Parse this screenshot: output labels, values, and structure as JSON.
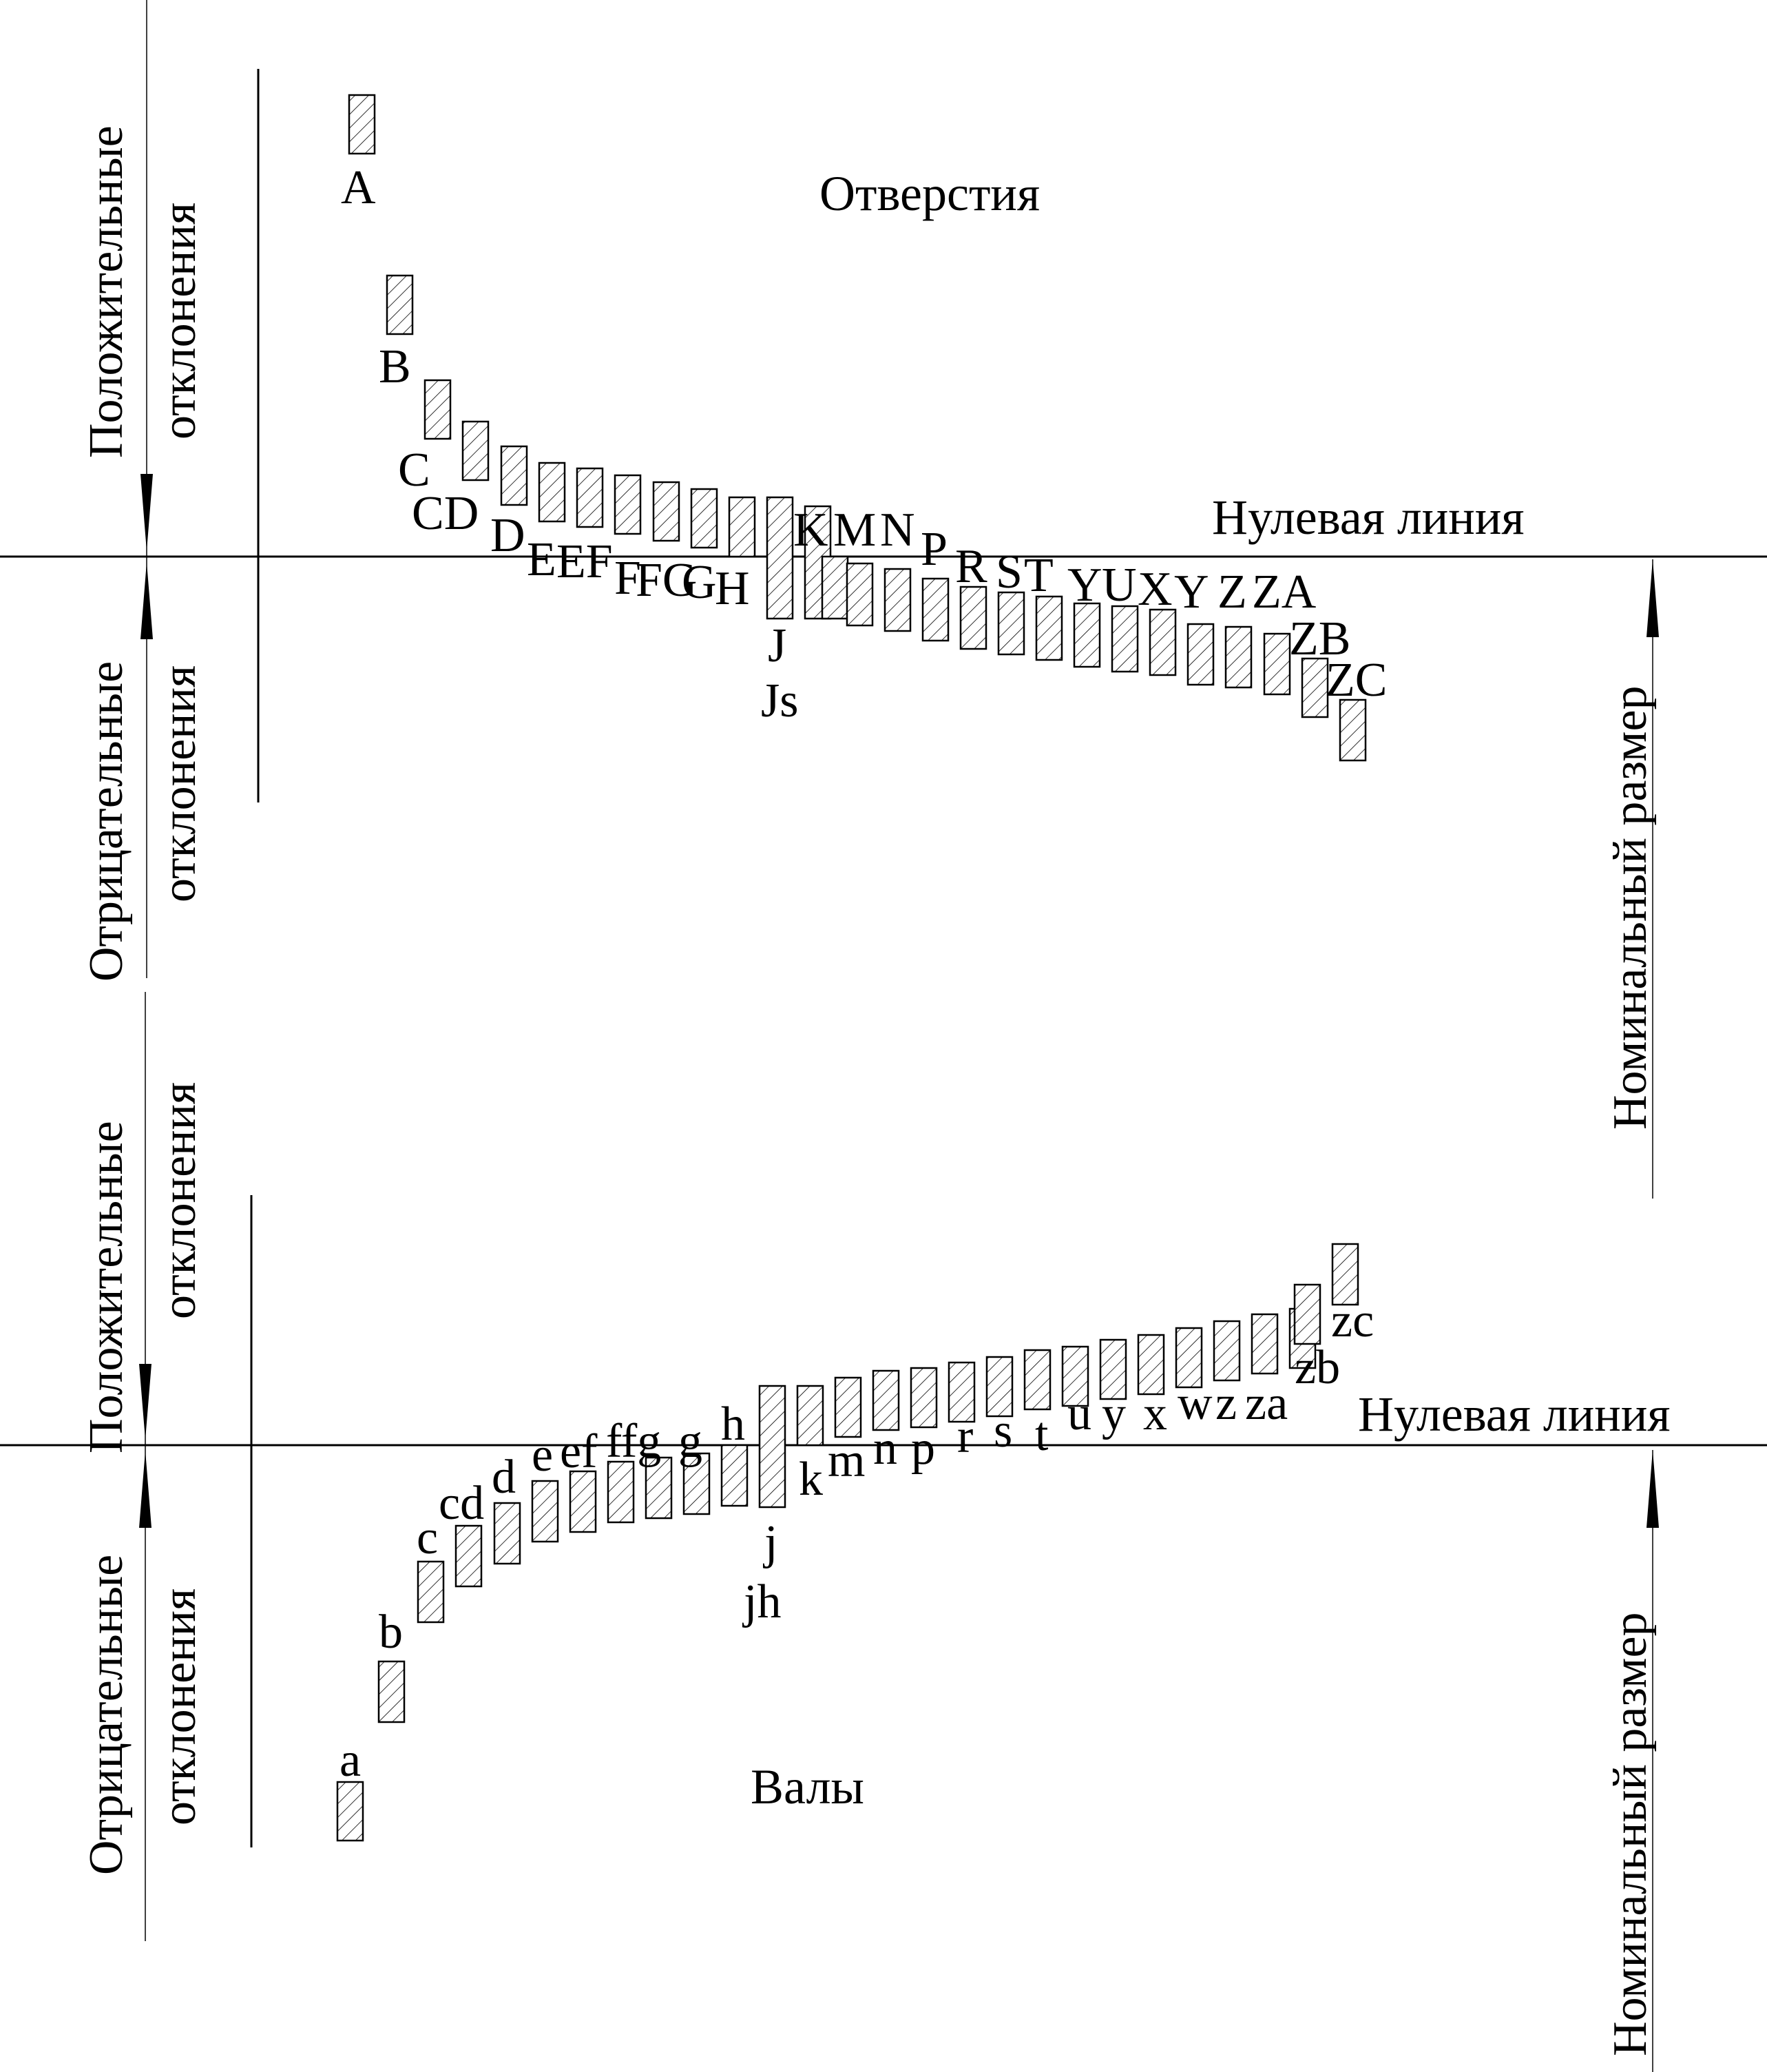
{
  "hole_panel": {
    "title": "Отверстия",
    "zero_line_label": "Нулевая линия",
    "positive_label": [
      "Положительные",
      "отклонения"
    ],
    "negative_label": [
      "Отрицательные",
      "отклонения"
    ],
    "nominal_label": "Номинальный размер",
    "letters": [
      "A",
      "B",
      "C",
      "CD",
      "D",
      "E",
      "EF",
      "F",
      "FG",
      "G",
      "H",
      "J",
      "Js",
      "K",
      "M",
      "N",
      "P",
      "R",
      "S",
      "T",
      "U",
      "X",
      "Y",
      "Z",
      "ZA",
      "ZB",
      "ZC"
    ]
  },
  "shaft_panel": {
    "title": "Валы",
    "zero_line_label": "Нулевая линия",
    "positive_label": [
      "Положительные",
      "отклонения"
    ],
    "negative_label": [
      "Отрицательные",
      "отклонения"
    ],
    "nominal_label": "Номинальный размер",
    "letters": [
      "a",
      "b",
      "c",
      "cd",
      "d",
      "e",
      "ef",
      "f",
      "fg",
      "g",
      "h",
      "j",
      "jh",
      "k",
      "m",
      "n",
      "p",
      "r",
      "s",
      "t",
      "u",
      "y",
      "x",
      "w",
      "z",
      "za",
      "zb",
      "zc"
    ]
  },
  "colors": {
    "line": "#000000",
    "hatch": "#000000",
    "background": "#ffffff"
  }
}
